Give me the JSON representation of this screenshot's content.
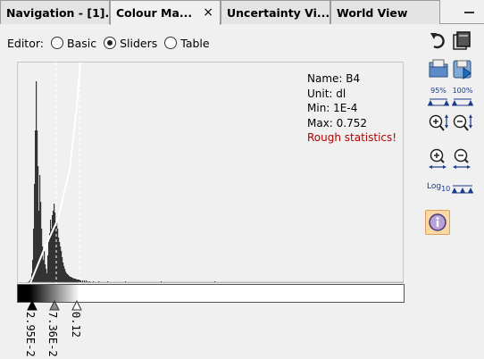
{
  "tabs": [
    {
      "label": "Navigation - [1]...",
      "active": false
    },
    {
      "label": "Colour Ma...",
      "active": true,
      "close": "×"
    },
    {
      "label": "Uncertainty Vi...",
      "active": false
    },
    {
      "label": "World View",
      "active": false
    }
  ],
  "editor": {
    "label": "Editor:",
    "options": [
      {
        "label": "Basic",
        "selected": false
      },
      {
        "label": "Sliders",
        "selected": true
      },
      {
        "label": "Table",
        "selected": false
      }
    ]
  },
  "info": {
    "name": "Name: B4",
    "unit": "Unit: dl",
    "min": "Min: 1E-4",
    "max": "Max: 0.752",
    "warning": "Rough statistics!"
  },
  "sliders": [
    {
      "label": "2.95E-2",
      "fill": "#000000"
    },
    {
      "label": "7.36E-2",
      "fill": "#8a8a8a"
    },
    {
      "label": "0.12",
      "fill": "#ffffff"
    }
  ],
  "toolbar": {
    "percent95": "95%",
    "percent100": "100%",
    "log_sub": "10",
    "log_main": "Log"
  },
  "colors": {
    "accent_selected": "#fbd9a6",
    "warning": "#b00000",
    "histogram": "#333333"
  }
}
